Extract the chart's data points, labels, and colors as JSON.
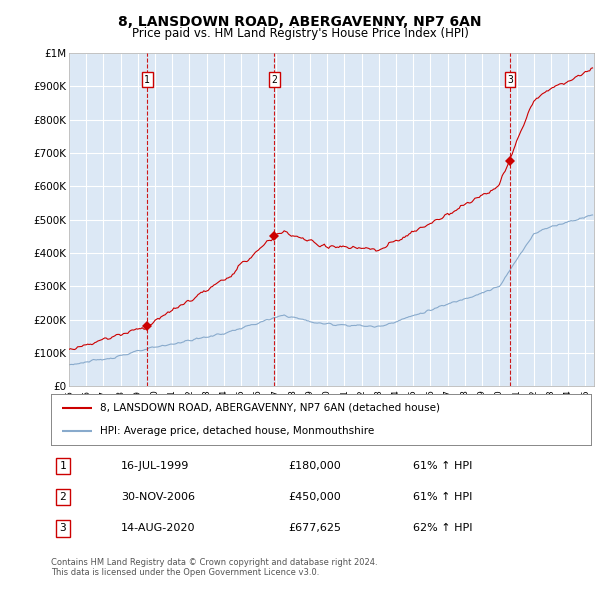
{
  "title": "8, LANSDOWN ROAD, ABERGAVENNY, NP7 6AN",
  "subtitle": "Price paid vs. HM Land Registry's House Price Index (HPI)",
  "ylim": [
    0,
    1000000
  ],
  "yticks": [
    0,
    100000,
    200000,
    300000,
    400000,
    500000,
    600000,
    700000,
    800000,
    900000,
    1000000
  ],
  "ytick_labels": [
    "£0",
    "£100K",
    "£200K",
    "£300K",
    "£400K",
    "£500K",
    "£600K",
    "£700K",
    "£800K",
    "£900K",
    "£1M"
  ],
  "background_color": "#dce8f5",
  "grid_color": "#ffffff",
  "transactions": [
    {
      "date": "16-JUL-1999",
      "price": 180000,
      "label": "1",
      "pct": "61%",
      "direction": "↑"
    },
    {
      "date": "30-NOV-2006",
      "price": 450000,
      "label": "2",
      "pct": "61%",
      "direction": "↑"
    },
    {
      "date": "14-AUG-2020",
      "price": 677625,
      "label": "3",
      "pct": "62%",
      "direction": "↑"
    }
  ],
  "transaction_dates_decimal": [
    1999.54,
    2006.92,
    2020.62
  ],
  "legend_line1": "8, LANSDOWN ROAD, ABERGAVENNY, NP7 6AN (detached house)",
  "legend_line2": "HPI: Average price, detached house, Monmouthshire",
  "footer1": "Contains HM Land Registry data © Crown copyright and database right 2024.",
  "footer2": "This data is licensed under the Open Government Licence v3.0.",
  "line_color_red": "#cc0000",
  "line_color_blue": "#88aacc",
  "title_fontsize": 10,
  "subtitle_fontsize": 8.5
}
